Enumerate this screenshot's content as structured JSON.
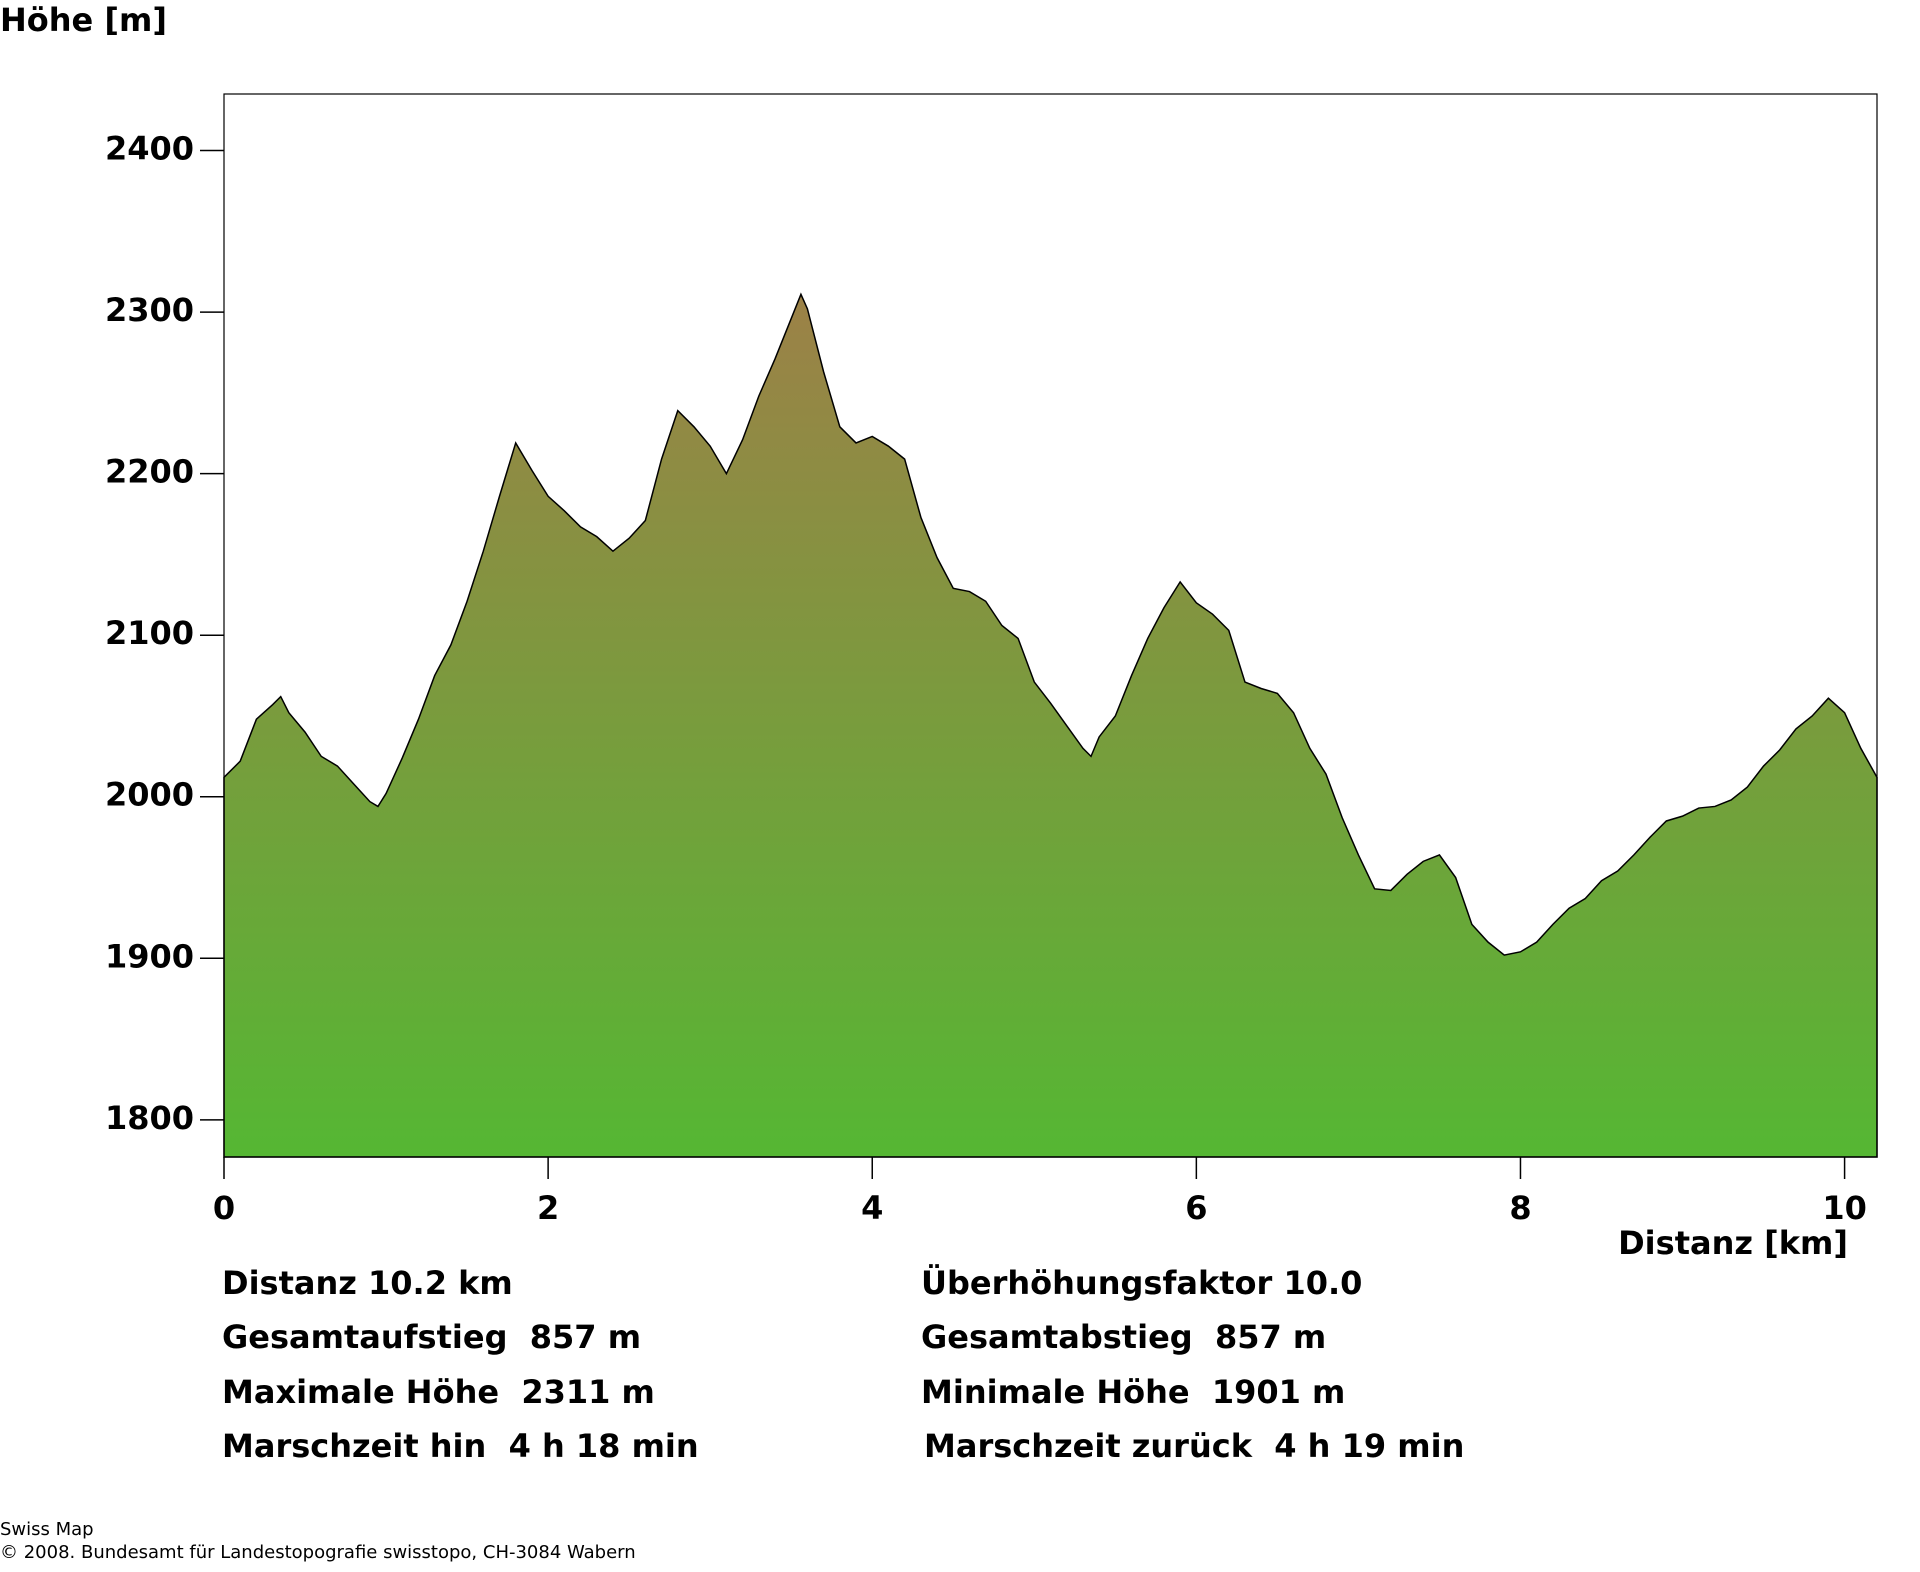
{
  "chart_data": {
    "type": "area",
    "y_label": "Höhe [m]",
    "x_label": "Distanz [km]",
    "x": [
      0,
      0.1,
      0.2,
      0.3,
      0.35,
      0.4,
      0.5,
      0.6,
      0.7,
      0.8,
      0.9,
      0.95,
      1.0,
      1.1,
      1.2,
      1.3,
      1.4,
      1.5,
      1.6,
      1.7,
      1.8,
      1.9,
      2.0,
      2.1,
      2.2,
      2.3,
      2.4,
      2.5,
      2.6,
      2.7,
      2.8,
      2.9,
      3.0,
      3.1,
      3.2,
      3.3,
      3.4,
      3.5,
      3.56,
      3.6,
      3.7,
      3.8,
      3.9,
      4.0,
      4.1,
      4.2,
      4.3,
      4.4,
      4.5,
      4.6,
      4.7,
      4.8,
      4.9,
      5.0,
      5.1,
      5.2,
      5.3,
      5.35,
      5.4,
      5.5,
      5.6,
      5.7,
      5.8,
      5.9,
      6.0,
      6.1,
      6.2,
      6.3,
      6.4,
      6.5,
      6.6,
      6.7,
      6.8,
      6.9,
      7.0,
      7.1,
      7.2,
      7.3,
      7.4,
      7.5,
      7.6,
      7.7,
      7.8,
      7.9,
      8.0,
      8.1,
      8.2,
      8.3,
      8.4,
      8.5,
      8.6,
      8.7,
      8.8,
      8.9,
      9.0,
      9.1,
      9.2,
      9.3,
      9.4,
      9.5,
      9.6,
      9.7,
      9.8,
      9.9,
      10.0,
      10.1,
      10.2
    ],
    "y": [
      2012,
      2022,
      2048,
      2057,
      2062,
      2052,
      2040,
      2025,
      2019,
      2008,
      1997,
      1994,
      2002,
      2024,
      2048,
      2075,
      2094,
      2121,
      2152,
      2186,
      2219,
      2202,
      2186,
      2177,
      2167,
      2161,
      2152,
      2160,
      2171,
      2209,
      2239,
      2229,
      2217,
      2200,
      2221,
      2248,
      2271,
      2296,
      2311,
      2302,
      2263,
      2229,
      2219,
      2223,
      2217,
      2209,
      2173,
      2148,
      2129,
      2127,
      2121,
      2106,
      2098,
      2071,
      2058,
      2044,
      2030,
      2025,
      2037,
      2050,
      2075,
      2098,
      2117,
      2133,
      2120,
      2113,
      2103,
      2071,
      2067,
      2064,
      2052,
      2030,
      2014,
      1987,
      1964,
      1943,
      1942,
      1952,
      1960,
      1964,
      1950,
      1921,
      1910,
      1902,
      1904,
      1910,
      1921,
      1931,
      1937,
      1948,
      1954,
      1964,
      1975,
      1985,
      1988,
      1993,
      1994,
      1998,
      2006,
      2019,
      2029,
      2042,
      2050,
      2061,
      2052,
      2030,
      2012
    ],
    "xlim": [
      0,
      10.2
    ],
    "ylim": [
      1777,
      2435
    ],
    "xticks": [
      0,
      2,
      4,
      6,
      8,
      10
    ],
    "yticks": [
      1800,
      1900,
      2000,
      2100,
      2200,
      2300,
      2400
    ],
    "fill_gradient": [
      "#9c8147",
      "#55b733"
    ],
    "line_color": "#000000"
  },
  "stats": [
    [
      "Distanz 10.2 km",
      "Überhöhungsfaktor 10.0"
    ],
    [
      "Gesamtaufstieg  857 m",
      "Gesamtabstieg  857 m"
    ],
    [
      "Maximale Höhe  2311 m",
      "Minimale Höhe  1901 m"
    ],
    [
      "Marschzeit hin  4 h 18 min",
      "Marschzeit zurück  4 h 19 min"
    ]
  ],
  "footer": [
    "Swiss Map",
    "© 2008. Bundesamt für Landestopografie swisstopo, CH-3084 Wabern"
  ]
}
